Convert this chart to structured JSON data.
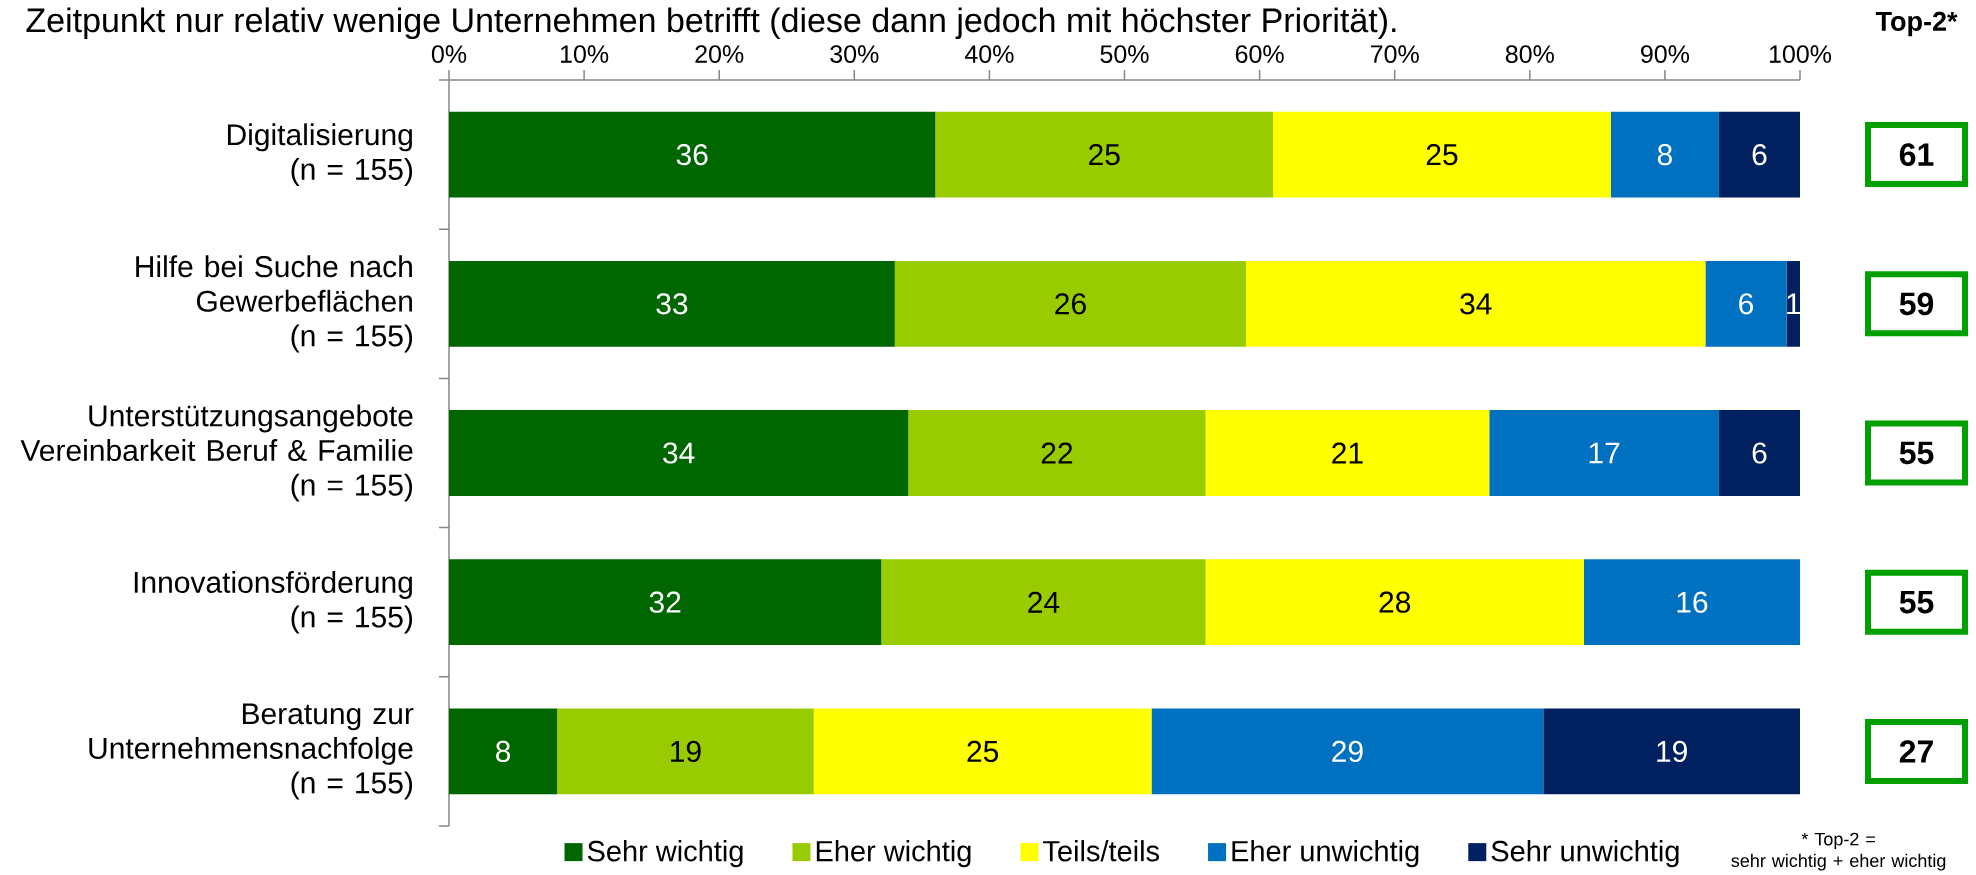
{
  "chart_data": [
    {
      "type": "bar",
      "orientation": "horizontal",
      "stacked": true,
      "title": "Zeitpunkt nur relativ wenige Unternehmen betrifft (diese dann jedoch mit höchster Priorität).",
      "categories": [
        "Digitalisierung\n(n = 155)",
        "Hilfe bei Suche nach\nGewerbeflächen\n(n = 155)",
        "Unterstützungsangebote\nVereinbarkeit Beruf & Familie\n(n = 155)",
        "Innovationsförderung\n(n = 155)",
        "Beratung zur\nUnternehmensnachfolge\n(n = 155)"
      ],
      "series": [
        {
          "name": "Sehr wichtig",
          "color": "#006600",
          "values": [
            36,
            33,
            34,
            32,
            8
          ]
        },
        {
          "name": "Eher wichtig",
          "color": "#99cc00",
          "values": [
            25,
            26,
            22,
            24,
            19
          ]
        },
        {
          "name": "Teils/teils",
          "color": "#ffff00",
          "values": [
            25,
            34,
            21,
            28,
            25
          ]
        },
        {
          "name": "Eher unwichtig",
          "color": "#0070c0",
          "values": [
            8,
            6,
            17,
            16,
            29
          ]
        },
        {
          "name": "Sehr unwichtig",
          "color": "#002060",
          "values": [
            6,
            1,
            6,
            null,
            19
          ]
        }
      ],
      "xlim": [
        0,
        100
      ],
      "xticks": [
        {
          "value": 0,
          "label": "0%"
        },
        {
          "value": 10,
          "label": "10%"
        },
        {
          "value": 20,
          "label": "20%"
        },
        {
          "value": 30,
          "label": "30%"
        },
        {
          "value": 40,
          "label": "40%"
        },
        {
          "value": 50,
          "label": "50%"
        },
        {
          "value": 60,
          "label": "60%"
        },
        {
          "value": 70,
          "label": "70%"
        },
        {
          "value": 80,
          "label": "80%"
        },
        {
          "value": 90,
          "label": "90%"
        },
        {
          "value": 100,
          "label": "100%"
        }
      ],
      "data_labels": true,
      "legend": "bottom"
    },
    {
      "type": "other",
      "title": "Top-2*",
      "values": [
        61,
        59,
        55,
        55,
        27
      ],
      "data_labels": true,
      "annotations": [
        "* Top-2 =\nsehr wichtig + eher wichtig"
      ]
    }
  ]
}
